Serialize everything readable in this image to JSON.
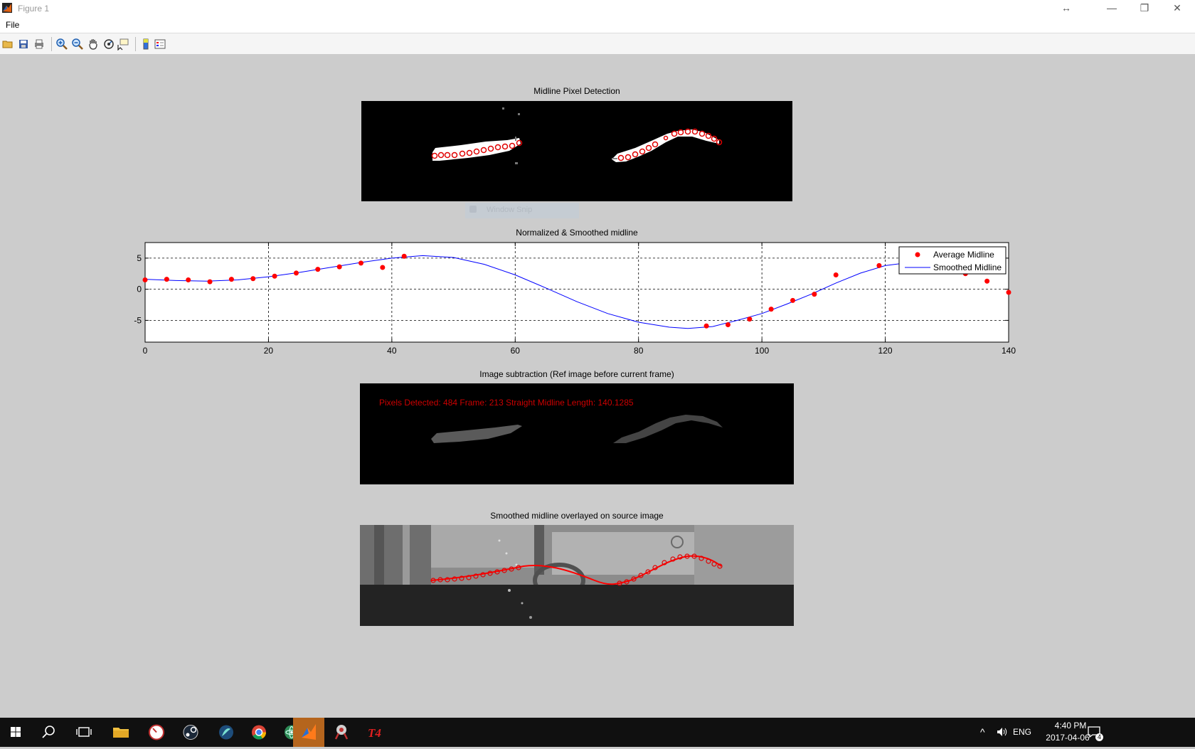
{
  "window": {
    "title": "Figure 1",
    "buttons": {
      "resize": "↔",
      "minimize": "—",
      "maximize": "❐",
      "close": "✕"
    }
  },
  "menu": {
    "file": "File"
  },
  "toolbar": {
    "icons": [
      "open-file-icon",
      "save-icon",
      "print-icon",
      "zoom-in-icon",
      "zoom-out-icon",
      "pan-icon",
      "rotate-3d-icon",
      "data-cursor-icon",
      "colorbar-icon",
      "legend-icon"
    ]
  },
  "panels": {
    "detection": {
      "title": "Midline Pixel Detection"
    },
    "plot": {
      "title": "Normalized & Smoothed midline"
    },
    "subtraction": {
      "title": "Image subtraction (Ref image before current frame)",
      "annotation": "Pixels Detected: 484 Frame: 213 Straight Midline Length: 140.1285"
    },
    "overlay": {
      "title": "Smoothed midline overlayed on source image"
    }
  },
  "snip_ghost": "Window Snip",
  "chart_data": {
    "type": "line",
    "title": "Normalized & Smoothed midline",
    "xlabel": "",
    "ylabel": "",
    "xlim": [
      0,
      140
    ],
    "ylim": [
      -8.5,
      7.5
    ],
    "xticks": [
      0,
      20,
      40,
      60,
      80,
      100,
      120,
      140
    ],
    "yticks": [
      -5,
      0,
      5
    ],
    "grid": true,
    "legend_position": "top-right",
    "series": [
      {
        "name": "Average Midline",
        "style": "scatter",
        "color": "#ff0000",
        "points": [
          [
            0,
            1.5
          ],
          [
            3.5,
            1.6
          ],
          [
            7,
            1.5
          ],
          [
            10.5,
            1.2
          ],
          [
            14,
            1.6
          ],
          [
            17.5,
            1.7
          ],
          [
            21,
            2.1
          ],
          [
            24.5,
            2.6
          ],
          [
            28,
            3.2
          ],
          [
            31.5,
            3.6
          ],
          [
            35,
            4.2
          ],
          [
            38.5,
            3.5
          ],
          [
            42,
            5.3
          ],
          [
            91,
            -5.9
          ],
          [
            94.5,
            -5.7
          ],
          [
            98,
            -4.8
          ],
          [
            101.5,
            -3.2
          ],
          [
            105,
            -1.8
          ],
          [
            108.5,
            -0.8
          ],
          [
            112,
            2.3
          ],
          [
            119,
            3.8
          ],
          [
            133,
            2.5
          ],
          [
            136.5,
            1.3
          ],
          [
            140,
            -0.5
          ]
        ]
      },
      {
        "name": "Smoothed Midline",
        "style": "line",
        "color": "#0000ff",
        "points": [
          [
            0,
            1.6
          ],
          [
            5,
            1.4
          ],
          [
            10,
            1.3
          ],
          [
            15,
            1.5
          ],
          [
            20,
            2.0
          ],
          [
            25,
            2.7
          ],
          [
            30,
            3.5
          ],
          [
            35,
            4.3
          ],
          [
            40,
            5.0
          ],
          [
            45,
            5.4
          ],
          [
            50,
            5.1
          ],
          [
            55,
            4.0
          ],
          [
            60,
            2.3
          ],
          [
            65,
            0.2
          ],
          [
            70,
            -2.0
          ],
          [
            75,
            -3.9
          ],
          [
            80,
            -5.3
          ],
          [
            85,
            -6.1
          ],
          [
            88,
            -6.3
          ],
          [
            92,
            -6.0
          ],
          [
            96,
            -5.0
          ],
          [
            100,
            -3.9
          ],
          [
            104,
            -2.4
          ],
          [
            108,
            -0.8
          ],
          [
            112,
            1.0
          ],
          [
            116,
            2.6
          ],
          [
            120,
            3.8
          ],
          [
            124,
            4.3
          ],
          [
            128,
            4.1
          ],
          [
            132,
            3.4
          ]
        ]
      }
    ]
  },
  "taskbar": {
    "apps": [
      "start-icon",
      "search-icon",
      "task-view-icon",
      "file-explorer-icon",
      "clock-app-icon",
      "steam-icon",
      "krita-icon",
      "chrome-icon",
      "atom-icon",
      "matlab-icon",
      "snipping-tool-icon",
      "tor-icon"
    ],
    "language": "ENG",
    "time": "4:40 PM",
    "date": "2017-04-06",
    "notification_count": "4"
  }
}
